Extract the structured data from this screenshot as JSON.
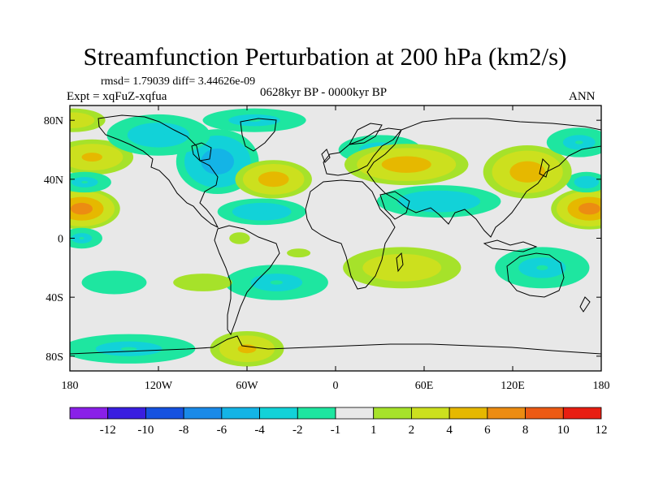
{
  "chart_data": {
    "type": "heatmap",
    "title": "Streamfunction Perturbation at 200 hPa (km2/s)",
    "stats_text": "rmsd= 1.79039 diff= 3.44626e-09",
    "period_text": "0628kyr BP - 0000kyr BP",
    "expt_text": "Expt = xqFuZ-xqfua",
    "season_text": "ANN",
    "variable": "Streamfunction Perturbation",
    "level": "200 hPa",
    "units": "km2/s",
    "rmsd": 1.79039,
    "diff": 3.44626e-09,
    "xlim": [
      -180,
      180
    ],
    "ylim": [
      -90,
      90
    ],
    "x_ticks": [
      {
        "value": -180,
        "label": "180"
      },
      {
        "value": -120,
        "label": "120W"
      },
      {
        "value": -60,
        "label": "60W"
      },
      {
        "value": 0,
        "label": "0"
      },
      {
        "value": 60,
        "label": "60E"
      },
      {
        "value": 120,
        "label": "120E"
      },
      {
        "value": 180,
        "label": "180"
      }
    ],
    "y_ticks": [
      {
        "value": 80,
        "label": "80N"
      },
      {
        "value": 40,
        "label": "40N"
      },
      {
        "value": 0,
        "label": "0"
      },
      {
        "value": -40,
        "label": "40S"
      },
      {
        "value": -80,
        "label": "80S"
      }
    ],
    "colorbar": {
      "levels": [
        -12,
        -10,
        -8,
        -6,
        -4,
        -2,
        -1,
        1,
        2,
        4,
        6,
        8,
        10,
        12
      ],
      "labels": [
        "-12",
        "-10",
        "-8",
        "-6",
        "-4",
        "-2",
        "-1",
        "1",
        "2",
        "4",
        "6",
        "8",
        "10",
        "12"
      ],
      "colors": [
        "#8a20e8",
        "#3a1ee0",
        "#1652e0",
        "#1a8ae8",
        "#14b4e6",
        "#12d2d8",
        "#1ee6a0",
        "#e8e8e8",
        "#a6e22a",
        "#cce01e",
        "#e6b800",
        "#ec8c12",
        "#ec5a14",
        "#e81e12"
      ]
    },
    "anomaly_centers": [
      {
        "lon": -172,
        "lat": 20,
        "value": 7.0,
        "rx": 26,
        "ry": 14,
        "name": "anomaly-pacific-west-positive"
      },
      {
        "lon": 172,
        "lat": 20,
        "value": 7.0,
        "rx": 26,
        "ry": 14,
        "name": "anomaly-pacific-east-positive"
      },
      {
        "lon": -165,
        "lat": 55,
        "value": 4.0,
        "rx": 28,
        "ry": 12,
        "name": "anomaly-north-pacific-positive"
      },
      {
        "lon": -178,
        "lat": 80,
        "value": 3.0,
        "rx": 22,
        "ry": 8,
        "name": "anomaly-arctic-west-positive"
      },
      {
        "lon": -170,
        "lat": 38,
        "value": -2.0,
        "rx": 18,
        "ry": 7,
        "name": "anomaly-pacific-west-negative"
      },
      {
        "lon": -172,
        "lat": 0,
        "value": -2.0,
        "rx": 14,
        "ry": 7,
        "name": "anomaly-equator-west-negative"
      },
      {
        "lon": 170,
        "lat": 38,
        "value": -2.5,
        "rx": 14,
        "ry": 7,
        "name": "anomaly-pacific-east-negative"
      },
      {
        "lon": -80,
        "lat": 52,
        "value": -5.0,
        "rx": 28,
        "ry": 22,
        "name": "anomaly-north-america-negative"
      },
      {
        "lon": -120,
        "lat": 70,
        "value": -2.5,
        "rx": 35,
        "ry": 14,
        "name": "anomaly-canada-negative"
      },
      {
        "lon": -55,
        "lat": 80,
        "value": -2.0,
        "rx": 35,
        "ry": 8,
        "name": "anomaly-arctic-negative"
      },
      {
        "lon": -42,
        "lat": 40,
        "value": 5.0,
        "rx": 26,
        "ry": 13,
        "name": "anomaly-atlantic-positive"
      },
      {
        "lon": -50,
        "lat": 18,
        "value": -3.0,
        "rx": 30,
        "ry": 9,
        "name": "anomaly-tropical-atlantic-negative"
      },
      {
        "lon": 30,
        "lat": 60,
        "value": -2.0,
        "rx": 28,
        "ry": 10,
        "name": "anomaly-europe-negative"
      },
      {
        "lon": 48,
        "lat": 50,
        "value": 5.0,
        "rx": 42,
        "ry": 14,
        "name": "anomaly-asia-positive"
      },
      {
        "lon": 70,
        "lat": 25,
        "value": -3.0,
        "rx": 42,
        "ry": 11,
        "name": "anomaly-south-asia-negative"
      },
      {
        "lon": 130,
        "lat": 45,
        "value": 5.0,
        "rx": 30,
        "ry": 18,
        "name": "anomaly-east-asia-positive"
      },
      {
        "lon": 165,
        "lat": 65,
        "value": -2.0,
        "rx": 22,
        "ry": 10,
        "name": "anomaly-bering-negative"
      },
      {
        "lon": 45,
        "lat": -20,
        "value": 3.0,
        "rx": 40,
        "ry": 14,
        "name": "anomaly-indian-ocean-positive"
      },
      {
        "lon": 140,
        "lat": -20,
        "value": -2.0,
        "rx": 32,
        "ry": 14,
        "name": "anomaly-australia-negative"
      },
      {
        "lon": -40,
        "lat": -30,
        "value": -2.0,
        "rx": 35,
        "ry": 12,
        "name": "anomaly-south-atlantic-negative"
      },
      {
        "lon": -90,
        "lat": -30,
        "value": 1.5,
        "rx": 20,
        "ry": 6,
        "name": "anomaly-south-pacific-positive"
      },
      {
        "lon": -150,
        "lat": -30,
        "value": -1.5,
        "rx": 22,
        "ry": 8,
        "name": "anomaly-south-pacific-west-negative"
      },
      {
        "lon": -60,
        "lat": -75,
        "value": 4.0,
        "rx": 25,
        "ry": 12,
        "name": "anomaly-antarctic-positive"
      },
      {
        "lon": -140,
        "lat": -75,
        "value": -2.0,
        "rx": 45,
        "ry": 10,
        "name": "anomaly-southern-ocean-negative"
      },
      {
        "lon": -65,
        "lat": 0,
        "value": 1.5,
        "rx": 7,
        "ry": 4,
        "name": "anomaly-amazon-positive"
      },
      {
        "lon": -25,
        "lat": -10,
        "value": 1.5,
        "rx": 8,
        "ry": 3,
        "name": "anomaly-mid-atlantic-positive"
      }
    ]
  }
}
